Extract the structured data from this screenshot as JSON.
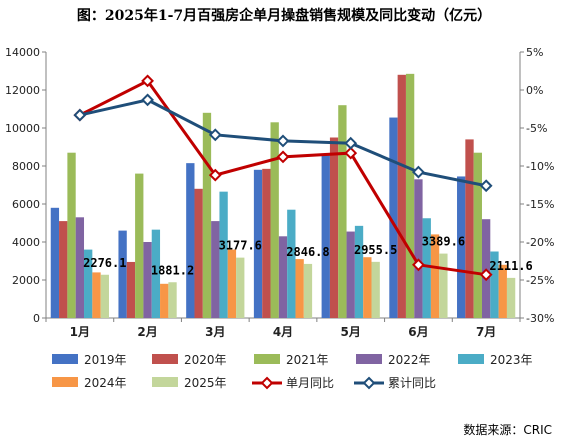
{
  "chart_data": {
    "type": "bar",
    "title": "图：2025年1-7月百强房企单月操盘销售规模及同比变动（亿元）",
    "categories": [
      "1月",
      "2月",
      "3月",
      "4月",
      "5月",
      "6月",
      "7月"
    ],
    "ylim": [
      0,
      14000
    ],
    "y_ticks": [
      "0",
      "2000",
      "4000",
      "6000",
      "8000",
      "10000",
      "12000",
      "14000"
    ],
    "y2lim": [
      -30,
      5
    ],
    "y2_ticks": [
      "5%",
      "0%",
      "-5%",
      "-10%",
      "-15%",
      "-20%",
      "-25%",
      "-30%"
    ],
    "grid": false,
    "legend_position": "bottom",
    "series": [
      {
        "name": "2019年",
        "kind": "bar",
        "color": "#4472c4",
        "values": [
          5800,
          4600,
          8150,
          7800,
          8550,
          10550,
          7450
        ]
      },
      {
        "name": "2020年",
        "kind": "bar",
        "color": "#c0504d",
        "values": [
          5100,
          2950,
          6800,
          7850,
          9500,
          12800,
          9400
        ]
      },
      {
        "name": "2021年",
        "kind": "bar",
        "color": "#9bbb59",
        "values": [
          8700,
          7600,
          10800,
          10300,
          11200,
          12850,
          8700
        ]
      },
      {
        "name": "2022年",
        "kind": "bar",
        "color": "#8064a2",
        "values": [
          5300,
          4000,
          5100,
          4300,
          4550,
          7300,
          5200
        ]
      },
      {
        "name": "2023年",
        "kind": "bar",
        "color": "#4bacc6",
        "values": [
          3600,
          4650,
          6650,
          5700,
          4850,
          5250,
          3500
        ]
      },
      {
        "name": "2024年",
        "kind": "bar",
        "color": "#f79646",
        "values": [
          2400,
          1800,
          3600,
          3100,
          3200,
          4400,
          2800
        ]
      },
      {
        "name": "2025年",
        "kind": "bar",
        "color": "#c3d69b",
        "values": [
          2276.1,
          1881.2,
          3177.6,
          2846.8,
          2955.5,
          3389.6,
          2111.6
        ]
      },
      {
        "name": "单月同比",
        "kind": "line",
        "axis": "right",
        "color": "#c00000",
        "marker": "diamond",
        "values": [
          -3.3,
          1.2,
          -11.2,
          -8.8,
          -8.3,
          -23.0,
          -24.3
        ]
      },
      {
        "name": "累计同比",
        "kind": "line",
        "axis": "right",
        "color": "#1f4e79",
        "marker": "diamond",
        "values": [
          -3.3,
          -1.3,
          -5.9,
          -6.7,
          -7.0,
          -10.8,
          -12.6
        ]
      }
    ],
    "data_labels": {
      "series": "2025年",
      "texts": [
        "2276.1",
        "1881.2",
        "3177.6",
        "2846.8",
        "2955.5",
        "3389.6",
        "2111.6"
      ]
    },
    "source": "数据来源：CRIC"
  }
}
